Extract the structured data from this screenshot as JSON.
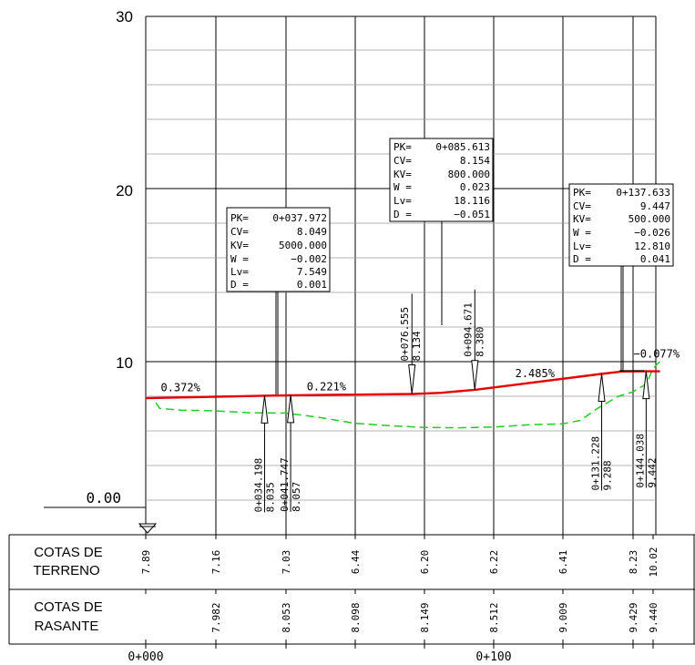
{
  "chart_data": {
    "type": "line",
    "ylim": [
      -5,
      30
    ],
    "y_ticks": [
      "30",
      "20",
      "10"
    ],
    "datum_label": "0.00",
    "stations_ticks": [
      "0+000",
      "0+100"
    ],
    "slopes": [
      {
        "label": "0.372%",
        "x": 10
      },
      {
        "label": "0.221%",
        "x": 52
      },
      {
        "label": "2.485%",
        "x": 112
      },
      {
        "label": "−0.077%",
        "x": 147
      }
    ],
    "curves": [
      {
        "lines": [
          {
            "k": "PK=",
            "v": "0+037.972"
          },
          {
            "k": "CV=",
            "v": "8.049"
          },
          {
            "k": "KV=",
            "v": "5000.000"
          },
          {
            "k": "W  =",
            "v": "−0.002"
          },
          {
            "k": "Lv=",
            "v": "7.549"
          },
          {
            "k": "D  =",
            "v": "0.001"
          }
        ]
      },
      {
        "lines": [
          {
            "k": "PK=",
            "v": "0+085.613"
          },
          {
            "k": "CV=",
            "v": "8.154"
          },
          {
            "k": "KV=",
            "v": "800.000"
          },
          {
            "k": "W  =",
            "v": "0.023"
          },
          {
            "k": "Lv=",
            "v": "18.116"
          },
          {
            "k": "D  =",
            "v": "−0.051"
          }
        ]
      },
      {
        "lines": [
          {
            "k": "PK=",
            "v": "0+137.633"
          },
          {
            "k": "CV=",
            "v": "9.447"
          },
          {
            "k": "KV=",
            "v": "500.000"
          },
          {
            "k": "W  =",
            "v": "−0.026"
          },
          {
            "k": "Lv=",
            "v": "12.810"
          },
          {
            "k": "D  =",
            "v": "0.041"
          }
        ]
      }
    ],
    "points": [
      {
        "pk": "0+034.198",
        "cota": "8.035",
        "x": 34.2,
        "y": 8.035
      },
      {
        "pk": "0+041.747",
        "cota": "8.057",
        "x": 41.7,
        "y": 8.057
      },
      {
        "pk": "0+076.555",
        "cota": "8.134",
        "x": 76.6,
        "y": 8.134
      },
      {
        "pk": "0+094.671",
        "cota": "8.380",
        "x": 94.7,
        "y": 8.38
      },
      {
        "pk": "0+131.228",
        "cota": "9.288",
        "x": 131.2,
        "y": 9.288
      },
      {
        "pk": "0+144.038",
        "cota": "9.442",
        "x": 144.0,
        "y": 9.442
      }
    ],
    "rasante_line": {
      "name": "Rasante",
      "color": "#e60000",
      "x": [
        0,
        34,
        42,
        77,
        85,
        95,
        131,
        137,
        144,
        148
      ],
      "y": [
        7.89,
        8.03,
        8.06,
        8.13,
        8.2,
        8.38,
        9.29,
        9.43,
        9.44,
        9.44
      ]
    },
    "terreno_line": {
      "name": "Terreno",
      "color": "#22cc22",
      "x": [
        0,
        2,
        4,
        10,
        20,
        30,
        40,
        50,
        60,
        70,
        80,
        90,
        100,
        110,
        120,
        125,
        130,
        136,
        140,
        144,
        146,
        148
      ],
      "y": [
        7.89,
        7.9,
        7.3,
        7.2,
        7.16,
        7.05,
        7.03,
        6.78,
        6.44,
        6.3,
        6.2,
        6.18,
        6.22,
        6.35,
        6.41,
        6.6,
        7.3,
        8.0,
        8.23,
        8.7,
        9.6,
        10.02
      ]
    }
  },
  "table": {
    "row1_label": [
      "COTAS DE",
      "TERRENO"
    ],
    "row2_label": [
      "COTAS DE",
      "RASANTE"
    ],
    "terreno_values": [
      "7.89",
      "7.16",
      "7.03",
      "6.44",
      "6.20",
      "6.22",
      "6.41",
      "8.23",
      "10.02"
    ],
    "rasante_values": [
      "7.982",
      "8.053",
      "8.098",
      "8.149",
      "8.512",
      "9.009",
      "9.429",
      "9.440"
    ]
  }
}
